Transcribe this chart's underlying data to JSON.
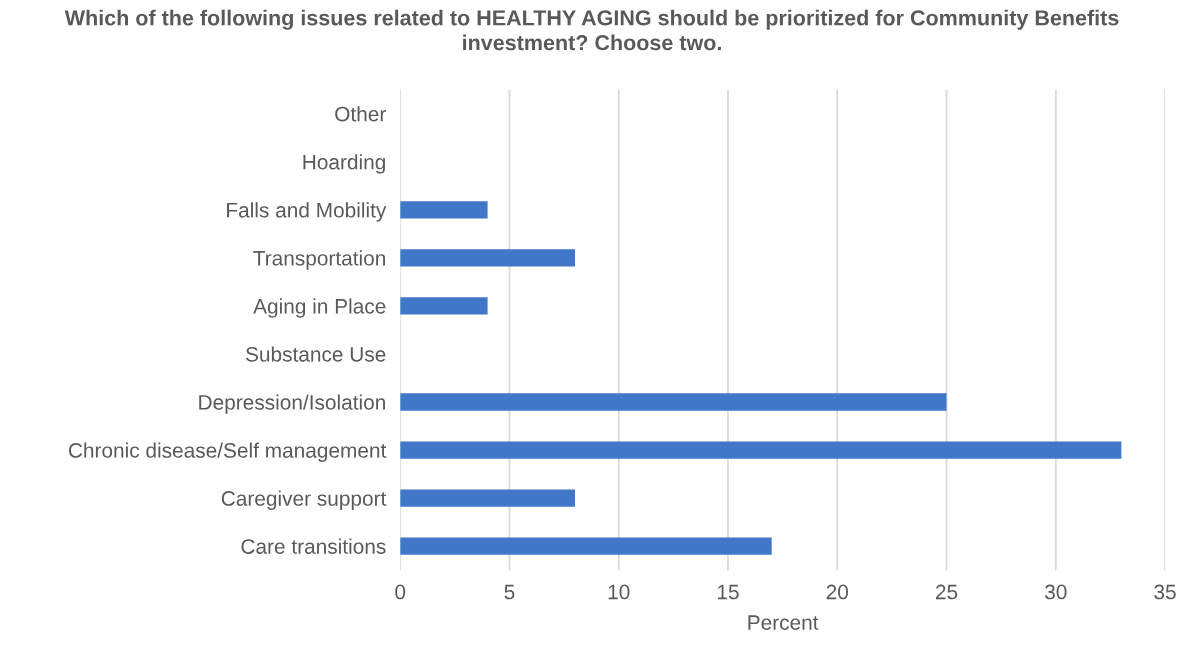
{
  "chart_data": {
    "type": "bar",
    "orientation": "horizontal",
    "title": "Which of the following issues related to HEALTHY AGING should be prioritized for Community Benefits investment? Choose two.",
    "xlabel": "Percent",
    "categories": [
      "Other",
      "Hoarding",
      "Falls and Mobility",
      "Transportation",
      "Aging in Place",
      "Substance Use",
      "Depression/Isolation",
      "Chronic disease/Self management",
      "Caregiver support",
      "Care transitions"
    ],
    "values": [
      0,
      0,
      4,
      8,
      4,
      0,
      25,
      33,
      8,
      17
    ],
    "color": "#4177c8",
    "xlim": [
      0,
      35
    ],
    "xticks": [
      0,
      5,
      10,
      15,
      20,
      25,
      30,
      35
    ],
    "grid": "x",
    "legend": false
  }
}
